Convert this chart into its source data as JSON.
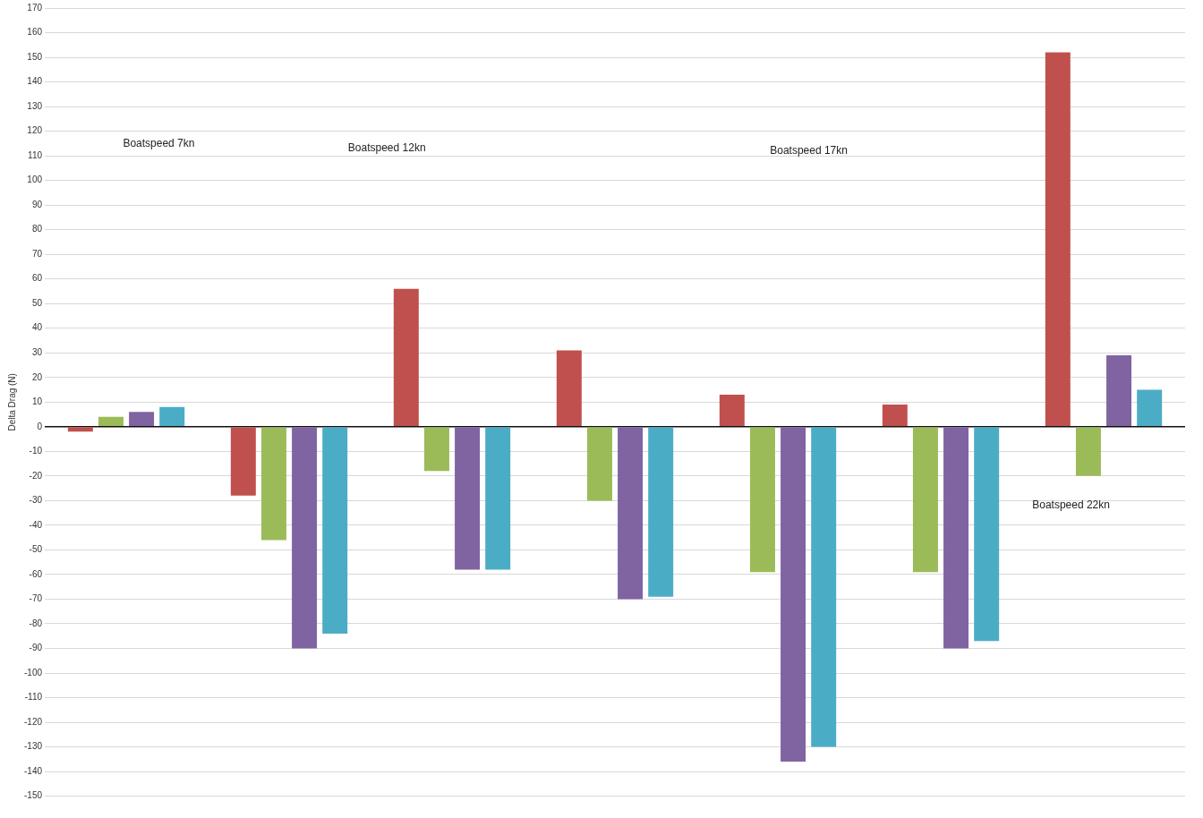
{
  "chart_data": {
    "type": "bar",
    "ylabel": "Delta Drag (N)",
    "categories": [
      null,
      null,
      null,
      null,
      null,
      null,
      null
    ],
    "series": [
      {
        "color": "#c0504d",
        "values": [
          -2,
          -28,
          56,
          31,
          13,
          9,
          152
        ]
      },
      {
        "color": "#9bbb59",
        "values": [
          4,
          -46,
          -18,
          -30,
          -59,
          -59,
          -20
        ]
      },
      {
        "color": "#8064a2",
        "values": [
          6,
          -90,
          -58,
          -70,
          -136,
          -90,
          29
        ]
      },
      {
        "color": "#4bacc6",
        "values": [
          8,
          -84,
          -58,
          -69,
          -130,
          -87,
          15
        ]
      }
    ],
    "ylim": [
      -150,
      170
    ],
    "yticks": [
      -150,
      -140,
      -130,
      -120,
      -110,
      -100,
      -90,
      -80,
      -70,
      -60,
      -50,
      -40,
      -30,
      -20,
      -10,
      0,
      10,
      20,
      30,
      40,
      50,
      60,
      70,
      80,
      90,
      100,
      110,
      120,
      130,
      140,
      150,
      160,
      170
    ],
    "grid": "y",
    "legend": false,
    "annotations": [
      "Boatspeed 7kn",
      "Boatspeed 12kn",
      "Boatspeed 17kn",
      "Boatspeed 22kn"
    ]
  }
}
